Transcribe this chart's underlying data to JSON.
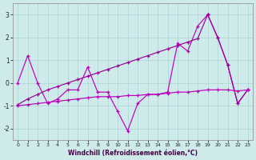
{
  "xlabel": "Windchill (Refroidissement éolien,°C)",
  "x": [
    0,
    1,
    2,
    3,
    4,
    5,
    6,
    7,
    8,
    9,
    10,
    11,
    12,
    13,
    14,
    15,
    16,
    17,
    18,
    19,
    20,
    21,
    22,
    23
  ],
  "line_jagged": [
    0.0,
    1.2,
    0.0,
    -0.9,
    -0.7,
    -0.3,
    -0.3,
    0.7,
    -0.4,
    -0.4,
    -1.25,
    -2.1,
    -0.9,
    -0.5,
    -0.5,
    -0.4,
    1.75,
    1.4,
    2.5,
    3.0,
    2.0,
    0.8,
    -0.9,
    -0.3
  ],
  "line_rising": [
    -0.95,
    -0.7,
    -0.5,
    -0.3,
    -0.15,
    0.0,
    0.15,
    0.3,
    0.45,
    0.6,
    0.75,
    0.9,
    1.05,
    1.2,
    1.35,
    1.5,
    1.65,
    1.8,
    1.95,
    3.0,
    2.0,
    0.8,
    -0.9,
    -0.3
  ],
  "line_flat": [
    -1.0,
    -0.95,
    -0.9,
    -0.85,
    -0.8,
    -0.75,
    -0.7,
    -0.65,
    -0.6,
    -0.6,
    -0.6,
    -0.55,
    -0.55,
    -0.5,
    -0.5,
    -0.45,
    -0.4,
    -0.4,
    -0.35,
    -0.3,
    -0.3,
    -0.3,
    -0.35,
    -0.3
  ],
  "ylim": [
    -2.5,
    3.5
  ],
  "yticks": [
    -2,
    -1,
    0,
    1,
    2,
    3
  ],
  "xlim": [
    -0.5,
    23.5
  ],
  "bg_color": "#ceeaea",
  "grid_color": "#aad4d4",
  "line_color_main": "#bb00bb",
  "line_color_alt": "#990099"
}
